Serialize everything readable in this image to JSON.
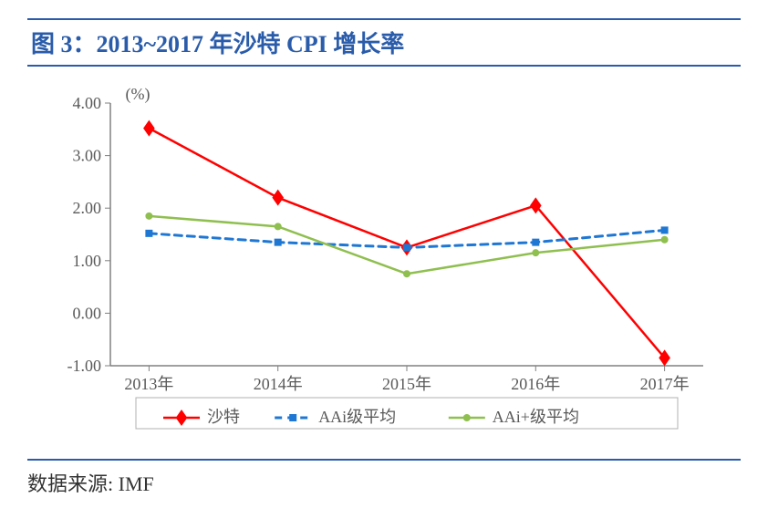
{
  "title": "图 3：2013~2017 年沙特 CPI 增长率",
  "source_label": "数据来源:",
  "source_value": "IMF",
  "chart": {
    "type": "line",
    "unit_label": "(%)",
    "categories": [
      "2013年",
      "2014年",
      "2015年",
      "2016年",
      "2017年"
    ],
    "ylim": [
      -1.0,
      4.0
    ],
    "ytick_step": 1.0,
    "ytick_format": "0.00",
    "background_color": "#ffffff",
    "plot_bg_color": "#ffffff",
    "axis_color": "#808080",
    "tick_color": "#808080",
    "label_color": "#595959",
    "label_fontsize": 18,
    "unit_fontsize": 18,
    "tick_fontsize": 18,
    "legend_fontsize": 18,
    "legend_border_color": "#b0b0b0",
    "legend_bg_color": "#ffffff",
    "grid": false,
    "series": [
      {
        "name": "沙特",
        "values": [
          3.52,
          2.2,
          1.25,
          2.05,
          -0.85
        ],
        "color": "#ff0000",
        "line_width": 2.5,
        "dash": null,
        "marker": "diamond",
        "marker_size": 9,
        "marker_fill": "#ff0000"
      },
      {
        "name": "AAi级平均",
        "values": [
          1.52,
          1.35,
          1.25,
          1.35,
          1.58
        ],
        "color": "#1f77d4",
        "line_width": 3,
        "dash": "8,6",
        "marker": "square",
        "marker_size": 8,
        "marker_fill": "#1f77d4"
      },
      {
        "name": "AAi+级平均",
        "values": [
          1.85,
          1.65,
          0.75,
          1.15,
          1.4
        ],
        "color": "#8fbf4f",
        "line_width": 2.5,
        "dash": null,
        "marker": "circle",
        "marker_size": 8,
        "marker_fill": "#8fbf4f"
      }
    ]
  }
}
